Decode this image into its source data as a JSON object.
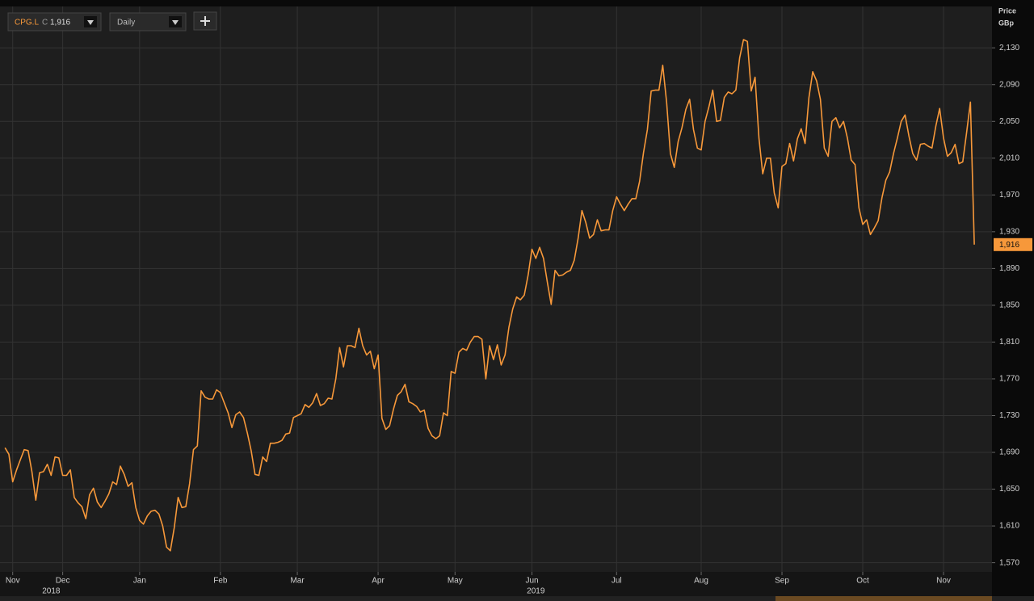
{
  "ui": {
    "symbol": "CPG.L",
    "close_prefix": "C",
    "close_label": "1,916",
    "interval": "Daily"
  },
  "chart_data": {
    "type": "line",
    "y_label": "Price",
    "y_unit": "GBp",
    "color": "#f7983a",
    "grid": true,
    "last_label": "1,916",
    "values": [
      1695,
      1688,
      1658,
      1671,
      1682,
      1693,
      1692,
      1669,
      1638,
      1668,
      1669,
      1677,
      1665,
      1685,
      1684,
      1665,
      1665,
      1671,
      1641,
      1635,
      1631,
      1618,
      1644,
      1651,
      1636,
      1630,
      1637,
      1645,
      1658,
      1655,
      1675,
      1666,
      1653,
      1657,
      1630,
      1616,
      1612,
      1621,
      1626,
      1627,
      1623,
      1610,
      1587,
      1583,
      1608,
      1641,
      1630,
      1631,
      1656,
      1693,
      1697,
      1757,
      1750,
      1748,
      1748,
      1758,
      1755,
      1744,
      1733,
      1717,
      1731,
      1734,
      1728,
      1711,
      1692,
      1666,
      1665,
      1685,
      1680,
      1700,
      1700,
      1701,
      1703,
      1710,
      1711,
      1728,
      1730,
      1732,
      1742,
      1739,
      1744,
      1754,
      1741,
      1743,
      1749,
      1748,
      1770,
      1804,
      1783,
      1806,
      1806,
      1804,
      1825,
      1806,
      1796,
      1800,
      1781,
      1796,
      1727,
      1715,
      1719,
      1737,
      1752,
      1756,
      1764,
      1745,
      1743,
      1740,
      1734,
      1736,
      1716,
      1708,
      1705,
      1708,
      1733,
      1730,
      1778,
      1776,
      1799,
      1803,
      1801,
      1810,
      1816,
      1816,
      1813,
      1770,
      1806,
      1791,
      1807,
      1785,
      1796,
      1826,
      1846,
      1859,
      1856,
      1861,
      1883,
      1911,
      1901,
      1913,
      1901,
      1875,
      1851,
      1888,
      1882,
      1883,
      1886,
      1888,
      1899,
      1923,
      1953,
      1940,
      1923,
      1927,
      1943,
      1931,
      1932,
      1932,
      1953,
      1968,
      1960,
      1953,
      1960,
      1966,
      1966,
      1985,
      2016,
      2041,
      2083,
      2084,
      2084,
      2111,
      2071,
      2015,
      2000,
      2028,
      2043,
      2063,
      2074,
      2041,
      2021,
      2019,
      2050,
      2066,
      2084,
      2050,
      2051,
      2076,
      2082,
      2080,
      2084,
      2119,
      2139,
      2137,
      2083,
      2098,
      2032,
      1993,
      2010,
      2010,
      1972,
      1956,
      2001,
      2004,
      2026,
      2007,
      2031,
      2042,
      2026,
      2076,
      2104,
      2094,
      2074,
      2021,
      2012,
      2050,
      2054,
      2043,
      2050,
      2032,
      2008,
      2003,
      1956,
      1938,
      1943,
      1927,
      1934,
      1942,
      1967,
      1986,
      1995,
      2015,
      2032,
      2050,
      2057,
      2034,
      2015,
      2008,
      2025,
      2026,
      2023,
      2021,
      2045,
      2064,
      2032,
      2012,
      2016,
      2025,
      2004,
      2006,
      2038,
      2071,
      1916
    ],
    "xlim": [
      -1.3,
      256.6
    ],
    "xticks": [
      {
        "value": 2,
        "label": "Nov"
      },
      {
        "value": 15,
        "label": "Dec"
      },
      {
        "value": 35,
        "label": "Jan"
      },
      {
        "value": 56,
        "label": "Feb"
      },
      {
        "value": 76,
        "label": "Mar"
      },
      {
        "value": 97,
        "label": "Apr"
      },
      {
        "value": 117,
        "label": "May"
      },
      {
        "value": 137,
        "label": "Jun"
      },
      {
        "value": 159,
        "label": "Jul"
      },
      {
        "value": 181,
        "label": "Aug"
      },
      {
        "value": 202,
        "label": "Sep"
      },
      {
        "value": 223,
        "label": "Oct"
      },
      {
        "value": 244,
        "label": "Nov"
      }
    ],
    "year_ticks": [
      {
        "value": 12,
        "label": "2018"
      },
      {
        "value": 138,
        "label": "2019"
      }
    ],
    "ylim": [
      1560,
      2175
    ],
    "yticks": [
      {
        "value": 1570,
        "label": "1,570"
      },
      {
        "value": 1610,
        "label": "1,610"
      },
      {
        "value": 1650,
        "label": "1,650"
      },
      {
        "value": 1690,
        "label": "1,690"
      },
      {
        "value": 1730,
        "label": "1,730"
      },
      {
        "value": 1770,
        "label": "1,770"
      },
      {
        "value": 1810,
        "label": "1,810"
      },
      {
        "value": 1850,
        "label": "1,850"
      },
      {
        "value": 1890,
        "label": "1,890"
      },
      {
        "value": 1930,
        "label": "1,930"
      },
      {
        "value": 1970,
        "label": "1,970"
      },
      {
        "value": 2010,
        "label": "2,010"
      },
      {
        "value": 2050,
        "label": "2,050"
      },
      {
        "value": 2090,
        "label": "2,090"
      },
      {
        "value": 2130,
        "label": "2,130"
      }
    ]
  }
}
